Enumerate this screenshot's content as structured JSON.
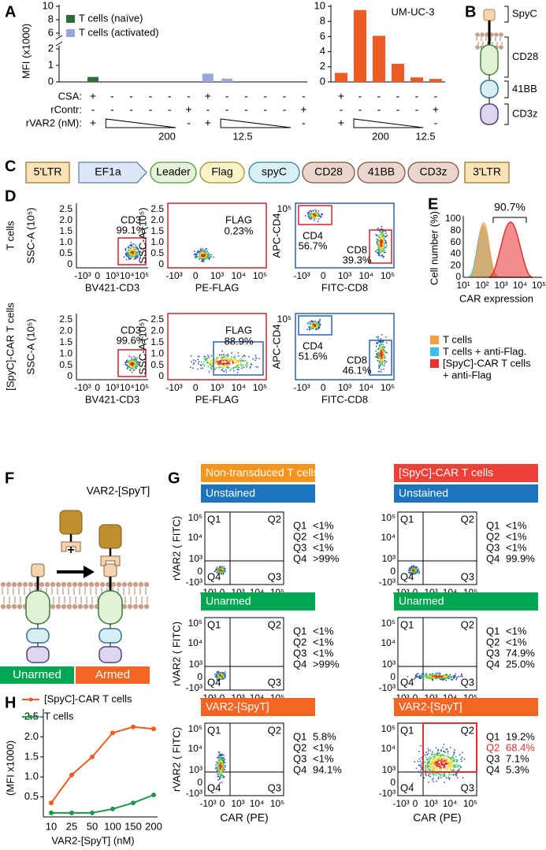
{
  "panel_letters": [
    "A",
    "B",
    "C",
    "D",
    "E",
    "F",
    "G",
    "H"
  ],
  "chart_data": [
    {
      "type": "bar",
      "y_label": "MFI (x1000)",
      "categories": [
        null,
        null,
        null,
        null,
        null,
        null,
        null,
        null,
        null,
        null,
        null,
        null
      ],
      "series": [
        {
          "name": "T cells (naïve)",
          "color": "#2e6b3e",
          "values": [
            0.3,
            0,
            0,
            0,
            0,
            0,
            0,
            0,
            0,
            0,
            0,
            0
          ]
        },
        {
          "name": "T cells (activated)",
          "color": "#9aa8d8",
          "values": [
            0,
            0,
            0,
            0,
            0,
            0,
            0.5,
            0.2,
            0,
            0,
            0,
            0
          ]
        }
      ],
      "ylim": [
        0,
        10
      ],
      "axis_break": [
        2,
        6
      ],
      "yticks": [
        0,
        1,
        2,
        6,
        8,
        10
      ],
      "condition_labels": [
        "CSA:",
        "rContr:",
        "rVAR2 (nM):"
      ],
      "conditions": [
        [
          "+",
          "-",
          "-",
          "-",
          "-",
          "-",
          "+",
          "-",
          "-",
          "-",
          "-",
          "-"
        ],
        [
          "-",
          "-",
          "-",
          "-",
          "-",
          "+",
          "-",
          "-",
          "-",
          "-",
          "-",
          "+"
        ],
        [
          "+",
          null,
          null,
          null,
          null,
          "-",
          "+",
          null,
          null,
          null,
          null,
          "-"
        ]
      ],
      "dose_labels": [
        "200",
        "12.5"
      ]
    },
    {
      "type": "bar",
      "title": "UM-UC-3",
      "categories": [
        null,
        null,
        null,
        null,
        null,
        null
      ],
      "values": [
        1.2,
        9.5,
        6.1,
        2.4,
        0.6,
        0.4
      ],
      "color": "#f05a23",
      "ylim": [
        0,
        10
      ],
      "yticks": [
        0,
        2,
        4,
        6,
        8,
        10
      ],
      "conditions": [
        [
          "+",
          "-",
          "-",
          "-",
          "-",
          "-"
        ],
        [
          "-",
          "-",
          "-",
          "-",
          "-",
          "+"
        ],
        [
          "+",
          null,
          null,
          null,
          null,
          "-"
        ]
      ],
      "dose_labels": [
        "200",
        "12.5"
      ]
    },
    {
      "type": "line",
      "categories": [
        "10",
        "25",
        "50",
        "100",
        "150",
        "200"
      ],
      "x_label": "VAR2-[SpyT] (nM)",
      "y_label": "(MFI x1000)",
      "series": [
        {
          "name": "[SpyC]-CAR T cells",
          "color": "#f05a23",
          "values": [
            0.35,
            1.05,
            1.5,
            2.1,
            2.25,
            2.2
          ]
        },
        {
          "name": "T cells",
          "color": "#1a9a4a",
          "values": [
            0.1,
            0.1,
            0.1,
            0.2,
            0.35,
            0.55
          ]
        }
      ],
      "ylim": [
        0,
        2.6
      ],
      "yticks": [
        0.5,
        {
          "value": 1,
          "label": "1.0"
        },
        1.5,
        {
          "value": 2,
          "label": "2.0"
        },
        2.5
      ]
    }
  ],
  "panel_b": {
    "labels": [
      "SpyC",
      "CD28",
      "41BB",
      "CD3z"
    ]
  },
  "panel_c": {
    "elements": [
      "5'LTR",
      "EF1a",
      "Leader",
      "Flag",
      "spyC",
      "CD28",
      "41BB",
      "CD3z",
      "3'LTR"
    ]
  },
  "panel_d": {
    "row_labels": [
      "T cells",
      "[SpyC]-CAR T cells"
    ],
    "linear_ticks": [
      "0",
      "0.5",
      "1.0",
      "1.5",
      "2.0",
      "2.5"
    ],
    "log_ticks": [
      "-10³",
      "0",
      "10³",
      "10⁴",
      "10⁵"
    ],
    "cd4_ticks": [
      "10⁵"
    ],
    "plots": [
      [
        {
          "x_label": "BV421-CD3",
          "y_label": "SSC-A (10⁵)",
          "gates": [
            {
              "name": "CD3",
              "value": "99.1%"
            }
          ]
        },
        {
          "x_label": "PE-FLAG",
          "y_label": "SSC-A (10⁵)",
          "gates": [
            {
              "name": "FLAG",
              "value": "0.23%"
            }
          ]
        },
        {
          "x_label": "FITC-CD8",
          "y_label": "APC-CD4",
          "gates": [
            {
              "name": "CD4",
              "value": "56.7%"
            },
            {
              "name": "CD8",
              "value": "39.3%"
            }
          ]
        }
      ],
      [
        {
          "x_label": "BV421-CD3",
          "y_label": "SSC-A (10⁵)",
          "gates": [
            {
              "name": "CD3",
              "value": "99.6%"
            }
          ]
        },
        {
          "x_label": "PE-FLAG",
          "y_label": "SSC-A (10⁵)",
          "gates": [
            {
              "name": "FLAG",
              "value": "88.9%"
            }
          ]
        },
        {
          "x_label": "FITC-CD8",
          "y_label": "APC-CD4",
          "gates": [
            {
              "name": "CD4",
              "value": "51.6%"
            },
            {
              "name": "CD8",
              "value": "46.1%"
            }
          ]
        }
      ]
    ]
  },
  "panel_e": {
    "y_label": "Cell number (%)",
    "x_label": "CAR expression",
    "yticks": [
      "0",
      "20",
      "40",
      "60",
      "80",
      "100"
    ],
    "xticks": [
      "10¹",
      "10²",
      "10³",
      "10⁴",
      "10⁵"
    ],
    "annotation": "90.7%",
    "legend": [
      {
        "lines": [
          "T cells"
        ],
        "color": "#f5a040"
      },
      {
        "lines": [
          "T cells + anti-Flag."
        ],
        "color": "#3cc0f0"
      },
      {
        "lines": [
          "[SpyC]-CAR T cells",
          "+ anti-Flag"
        ],
        "color": "#e83030"
      }
    ]
  },
  "panel_f": {
    "top_label": "VAR2-[SpyT]",
    "plus": "+",
    "states": [
      {
        "name": "Unarmed",
        "color": "#00a651"
      },
      {
        "name": "Armed",
        "color": "#f26522"
      }
    ]
  },
  "panel_g": {
    "columns": [
      {
        "name": "Non-transduced T cells",
        "color": "#f7941d"
      },
      {
        "name": "[SpyC]-CAR T cells",
        "color": "#ee4036"
      }
    ],
    "rows": [
      {
        "name": "Unstained",
        "color": "#1c75bc"
      },
      {
        "name": "Unarmed",
        "color": "#00a651"
      },
      {
        "name": "VAR2-[SpyT]",
        "color": "#f26522"
      }
    ],
    "y_label": "rVAR2 ( FITC)",
    "x_label": "CAR  (PE)",
    "y_ticks": [
      "10⁵",
      "10⁴",
      "10³",
      "0",
      "-10³"
    ],
    "x_ticks": [
      "-10³",
      "0",
      "10³",
      "10⁴",
      "10⁵"
    ],
    "quadrants": [
      "Q1",
      "Q2",
      "Q3",
      "Q4"
    ],
    "stats": [
      [
        [
          "<1%",
          "<1%",
          "<1%",
          ">99%"
        ],
        [
          "<1%",
          "<1%",
          "<1%",
          "99.9%"
        ]
      ],
      [
        [
          "<1%",
          "<1%",
          "<1%",
          ">99%"
        ],
        [
          "<1%",
          "<1%",
          "74.9%",
          "25.0%"
        ]
      ],
      [
        [
          "5.8%",
          "<1%",
          "<1%",
          "94.1%"
        ],
        [
          "19.2%",
          "68.4%",
          "7.1%",
          "5.3%"
        ]
      ]
    ],
    "highlight": {
      "row": 2,
      "column": 1,
      "quadrant": 1,
      "color": "#e03030"
    }
  }
}
